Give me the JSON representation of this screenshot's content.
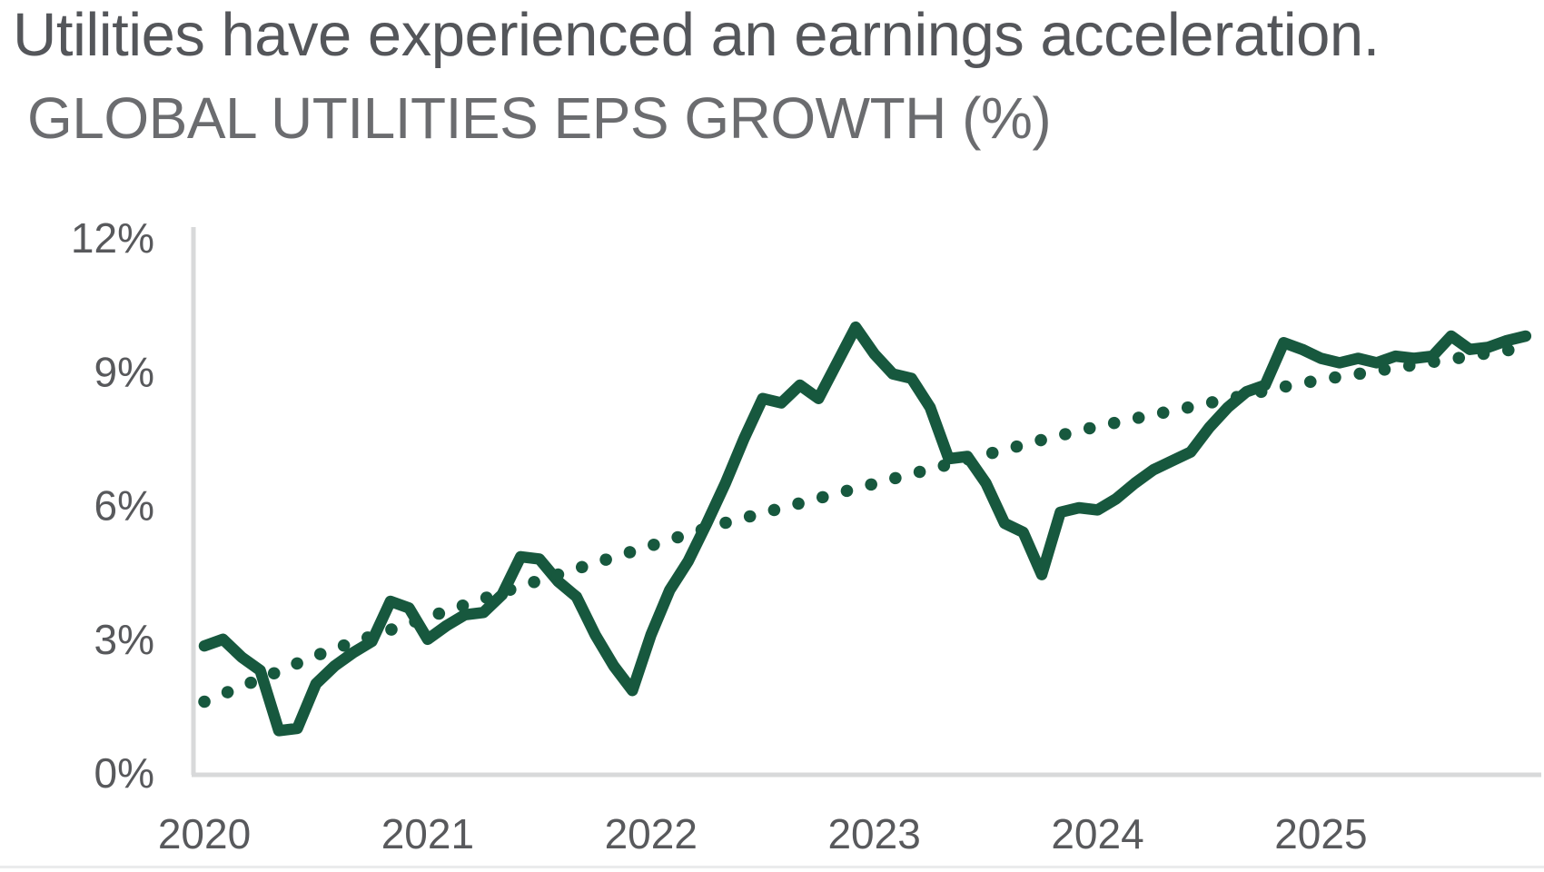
{
  "header": {
    "headline": "Utilities have experienced an earnings acceleration.",
    "chart_title": "GLOBAL UTILITIES EPS GROWTH (%)"
  },
  "colors": {
    "series_green": "#17583E",
    "headline_gray": "#54565A",
    "chart_title_gray": "#6B6C6F",
    "tick_label_gray": "#58595C",
    "axis_line_gray": "#D8D9DA"
  },
  "chart_data": {
    "type": "line",
    "title": "GLOBAL UTILITIES EPS GROWTH (%)",
    "x_frequency": "monthly",
    "x_start": "2020-01",
    "x_end": "2025-12",
    "grid": "off",
    "legend": "none",
    "x_axis": {
      "labels": [
        "2020",
        "2021",
        "2022",
        "2023",
        "2024",
        "2025"
      ],
      "month_index": [
        0,
        12,
        24,
        36,
        48,
        60
      ]
    },
    "y_axis": {
      "labels": [
        "0%",
        "3%",
        "6%",
        "9%",
        "12%"
      ],
      "values": [
        0,
        3,
        6,
        9,
        12
      ],
      "ylim": [
        0,
        12
      ]
    },
    "series": [
      {
        "name": "Global utilities EPS growth",
        "style": "solid",
        "color": "#17583E",
        "values": [
          2.85,
          3.0,
          2.6,
          2.3,
          0.95,
          1.0,
          2.0,
          2.4,
          2.7,
          2.95,
          3.85,
          3.7,
          3.0,
          3.3,
          3.55,
          3.6,
          4.0,
          4.85,
          4.8,
          4.3,
          3.95,
          3.1,
          2.4,
          1.85,
          3.1,
          4.1,
          4.75,
          5.6,
          6.5,
          7.5,
          8.4,
          8.3,
          8.7,
          8.4,
          9.2,
          10.0,
          9.4,
          8.95,
          8.85,
          8.2,
          7.05,
          7.1,
          6.5,
          5.6,
          5.4,
          4.45,
          5.85,
          5.95,
          5.9,
          6.15,
          6.5,
          6.8,
          7.0,
          7.2,
          7.75,
          8.2,
          8.55,
          8.7,
          9.65,
          9.5,
          9.3,
          9.2,
          9.3,
          9.2,
          9.35,
          9.3,
          9.35,
          9.8,
          9.5,
          9.55,
          9.7,
          9.8
        ]
      },
      {
        "name": "Trend line",
        "style": "dotted",
        "color": "#17583E",
        "values": [
          1.6,
          1.77,
          1.94,
          2.11,
          2.28,
          2.46,
          2.63,
          2.79,
          2.93,
          3.07,
          3.21,
          3.35,
          3.49,
          3.63,
          3.77,
          3.91,
          4.05,
          4.19,
          4.32,
          4.45,
          4.58,
          4.71,
          4.84,
          4.97,
          5.1,
          5.23,
          5.36,
          5.49,
          5.61,
          5.72,
          5.83,
          5.94,
          6.05,
          6.16,
          6.27,
          6.38,
          6.49,
          6.6,
          6.71,
          6.81,
          6.92,
          7.03,
          7.14,
          7.25,
          7.36,
          7.47,
          7.57,
          7.68,
          7.77,
          7.86,
          7.95,
          8.04,
          8.12,
          8.21,
          8.3,
          8.39,
          8.48,
          8.57,
          8.66,
          8.74,
          8.82,
          8.89,
          8.95,
          9.02,
          9.09,
          9.15,
          9.22,
          9.28,
          9.35,
          9.42,
          9.48,
          9.55
        ]
      }
    ]
  }
}
